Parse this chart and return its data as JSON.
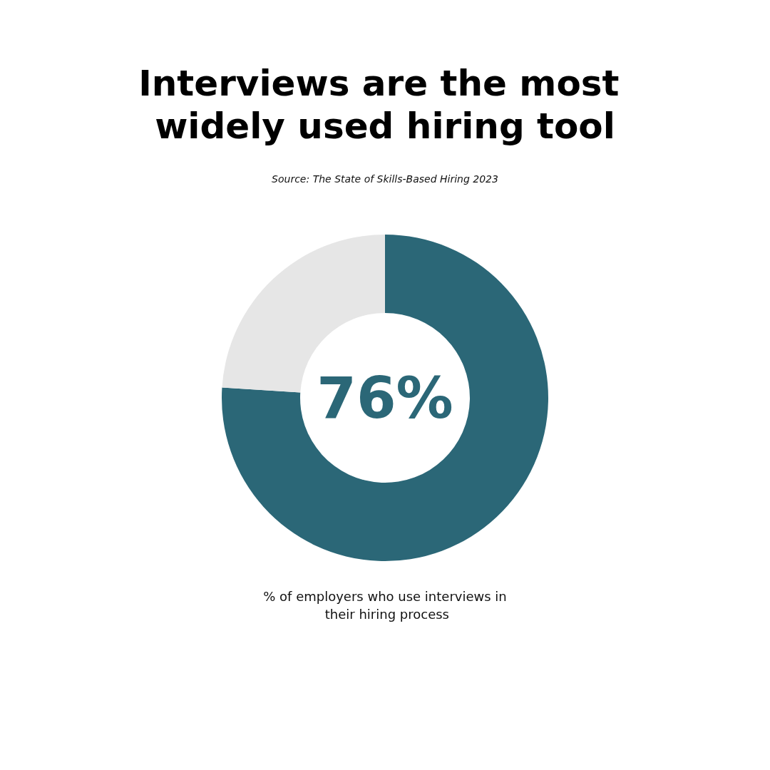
{
  "chart_data": {
    "type": "donut",
    "title": "Interviews are the most widely used hiring tool",
    "categories": [
      null,
      null
    ],
    "values": [
      76,
      24
    ],
    "colors": [
      "#2b6777",
      "#e6e6e6"
    ],
    "value_labels": [
      "76%",
      null
    ],
    "annotations": [
      "Source: The State of Skills-Based Hiring 2023",
      "% of employers who use interviews in their hiring process"
    ]
  }
}
